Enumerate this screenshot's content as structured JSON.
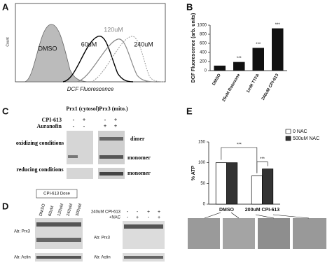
{
  "panel_labels": [
    "A",
    "B",
    "C",
    "D",
    "E"
  ],
  "panel_a": {
    "count_label": "Count",
    "x_label": "DCF Fluorescence",
    "curve_labels": [
      "DMSO",
      "60uM",
      "120uM",
      "240uM"
    ]
  },
  "panel_c": {
    "headers": [
      "Prx1 (cytosol)",
      "Prx3 (mito.)"
    ],
    "rows": [
      "CPI-613",
      "Auranofin"
    ],
    "signs": [
      [
        "-",
        "+",
        "-",
        "+"
      ],
      [
        "-",
        "-",
        "+",
        "+"
      ]
    ],
    "bands": [
      "dimer",
      "monomer",
      "monomer"
    ],
    "conditions": [
      "oxidizing conditions",
      "reducing conditions"
    ]
  },
  "panel_d": {
    "dose_box": "CPI-613 Dose",
    "lanes": [
      "DMSO",
      "60uM",
      "120uM",
      "240uM",
      "300uM"
    ],
    "antibodies": [
      "Ab: Prx3",
      "Ab: Actin"
    ],
    "right_rows": [
      "240uM CPI-613",
      "+NAC"
    ],
    "right_signs": [
      [
        "-",
        "-",
        "+",
        "+"
      ],
      [
        "-",
        "+",
        "-",
        "+"
      ]
    ],
    "right_antibodies": [
      "Ab: Prx3",
      "Ab: Actin"
    ]
  },
  "chart_data": [
    {
      "type": "bar",
      "y_label": "DCF Fluorescence (arb. units)",
      "categories": [
        "DMSO",
        "25uM Rotenone",
        "1mM TTFA",
        "240uM CPI-613"
      ],
      "values": [
        110,
        190,
        500,
        930
      ],
      "color": "#111111",
      "ylim": [
        0,
        1000
      ],
      "yticks": [
        0,
        200,
        400,
        600,
        800,
        1000
      ],
      "annotations": [
        "***",
        "***",
        "***"
      ]
    },
    {
      "type": "bar",
      "y_label": "% ATP",
      "categories": [
        "DMSO",
        "200uM CPI-613"
      ],
      "series": [
        {
          "name": "0 NAC",
          "color": "#ffffff",
          "values": [
            100,
            68
          ]
        },
        {
          "name": "500uM NAC",
          "color": "#333333",
          "values": [
            100,
            85
          ]
        }
      ],
      "ylim": [
        0,
        150
      ],
      "yticks": [
        0,
        50,
        100,
        150
      ],
      "annotations": [
        "***",
        "***"
      ]
    }
  ]
}
